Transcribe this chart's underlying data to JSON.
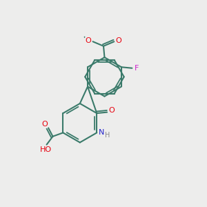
{
  "background": "#ededec",
  "bond_color": "#3a7a6a",
  "O_color": "#e8000d",
  "N_color": "#2222cc",
  "F_color": "#cc22cc",
  "H_color": "#888888",
  "lw": 1.5,
  "inner_lw": 1.3,
  "fs": 8.0,
  "figsize": [
    3.0,
    3.0
  ],
  "dpi": 100,
  "xlim": [
    0,
    10
  ],
  "ylim": [
    0,
    10
  ]
}
